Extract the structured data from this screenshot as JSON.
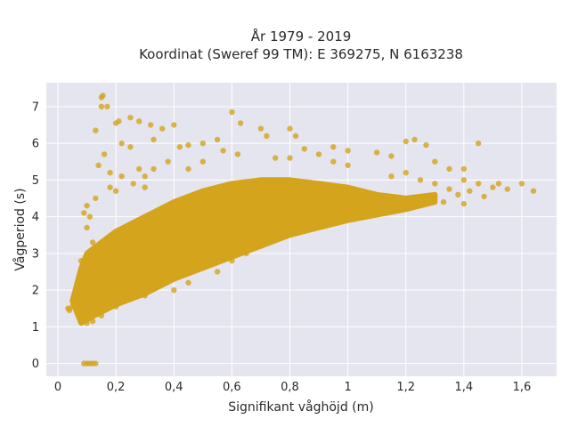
{
  "chart_data": {
    "type": "scatter",
    "title": "År 1979 - 2019",
    "subtitle": "Koordinat (Sweref 99 TM): E 369275, N 6163238",
    "xlabel": "Signifikant våghöjd (m)",
    "ylabel": "Vågperiod (s)",
    "xlim": [
      -0.04,
      1.72
    ],
    "ylim": [
      -0.35,
      7.65
    ],
    "xticks": [
      0,
      0.2,
      0.4,
      0.6,
      0.8,
      1,
      1.2,
      1.4,
      1.6
    ],
    "xtick_labels": [
      "0",
      "0,2",
      "0,4",
      "0,6",
      "0,8",
      "1",
      "1,2",
      "1,4",
      "1,6"
    ],
    "yticks": [
      0,
      1,
      2,
      3,
      4,
      5,
      6,
      7
    ],
    "ytick_labels": [
      "0",
      "1",
      "2",
      "3",
      "4",
      "5",
      "6",
      "7"
    ],
    "grid": true,
    "legend": "none",
    "colors": {
      "points": "#d4a41c",
      "plot_bg": "#e5e5ef",
      "grid": "#ffffff"
    },
    "density_band": {
      "lower_edge": [
        [
          0.08,
          1.1
        ],
        [
          0.1,
          1.2
        ],
        [
          0.2,
          1.6
        ],
        [
          0.3,
          1.9
        ],
        [
          0.4,
          2.3
        ],
        [
          0.5,
          2.6
        ],
        [
          0.6,
          2.9
        ],
        [
          0.7,
          3.2
        ],
        [
          0.8,
          3.5
        ],
        [
          0.9,
          3.7
        ],
        [
          1.0,
          3.9
        ],
        [
          1.1,
          4.05
        ],
        [
          1.2,
          4.2
        ],
        [
          1.3,
          4.4
        ]
      ],
      "upper_edge": [
        [
          0.05,
          1.7
        ],
        [
          0.08,
          2.6
        ],
        [
          0.1,
          3.0
        ],
        [
          0.2,
          3.6
        ],
        [
          0.3,
          4.0
        ],
        [
          0.4,
          4.4
        ],
        [
          0.5,
          4.7
        ],
        [
          0.6,
          4.9
        ],
        [
          0.7,
          5.0
        ],
        [
          0.8,
          5.0
        ],
        [
          0.9,
          4.9
        ],
        [
          1.0,
          4.8
        ],
        [
          1.1,
          4.6
        ],
        [
          1.2,
          4.5
        ],
        [
          1.3,
          4.6
        ]
      ]
    },
    "points": [
      {
        "x": 0.09,
        "y": 0
      },
      {
        "x": 0.1,
        "y": 0
      },
      {
        "x": 0.11,
        "y": 0
      },
      {
        "x": 0.12,
        "y": 0
      },
      {
        "x": 0.13,
        "y": 0
      },
      {
        "x": 0.035,
        "y": 1.5
      },
      {
        "x": 0.04,
        "y": 1.45
      },
      {
        "x": 0.05,
        "y": 1.55
      },
      {
        "x": 0.06,
        "y": 1.6
      },
      {
        "x": 0.065,
        "y": 1.4
      },
      {
        "x": 0.07,
        "y": 1.9
      },
      {
        "x": 0.075,
        "y": 2.3
      },
      {
        "x": 0.08,
        "y": 2.8
      },
      {
        "x": 0.085,
        "y": 1.2
      },
      {
        "x": 0.09,
        "y": 1.15
      },
      {
        "x": 0.1,
        "y": 3.7
      },
      {
        "x": 0.11,
        "y": 4.0
      },
      {
        "x": 0.12,
        "y": 3.3
      },
      {
        "x": 0.13,
        "y": 4.5
      },
      {
        "x": 0.13,
        "y": 6.35
      },
      {
        "x": 0.15,
        "y": 7.25
      },
      {
        "x": 0.155,
        "y": 7.3
      },
      {
        "x": 0.17,
        "y": 7.0
      },
      {
        "x": 0.15,
        "y": 7.0
      },
      {
        "x": 0.14,
        "y": 5.4
      },
      {
        "x": 0.16,
        "y": 5.7
      },
      {
        "x": 0.18,
        "y": 5.2
      },
      {
        "x": 0.2,
        "y": 6.55
      },
      {
        "x": 0.21,
        "y": 6.6
      },
      {
        "x": 0.22,
        "y": 6.0
      },
      {
        "x": 0.25,
        "y": 5.9
      },
      {
        "x": 0.25,
        "y": 6.7
      },
      {
        "x": 0.28,
        "y": 6.6
      },
      {
        "x": 0.3,
        "y": 5.1
      },
      {
        "x": 0.32,
        "y": 6.5
      },
      {
        "x": 0.33,
        "y": 6.1
      },
      {
        "x": 0.36,
        "y": 6.4
      },
      {
        "x": 0.4,
        "y": 6.5
      },
      {
        "x": 0.42,
        "y": 5.9
      },
      {
        "x": 0.45,
        "y": 5.95
      },
      {
        "x": 0.5,
        "y": 6.0
      },
      {
        "x": 0.55,
        "y": 6.1
      },
      {
        "x": 0.57,
        "y": 5.8
      },
      {
        "x": 0.6,
        "y": 6.85
      },
      {
        "x": 0.63,
        "y": 6.55
      },
      {
        "x": 0.7,
        "y": 6.4
      },
      {
        "x": 0.72,
        "y": 6.2
      },
      {
        "x": 0.8,
        "y": 6.4
      },
      {
        "x": 0.82,
        "y": 6.2
      },
      {
        "x": 0.85,
        "y": 5.85
      },
      {
        "x": 0.9,
        "y": 5.7
      },
      {
        "x": 0.95,
        "y": 5.9
      },
      {
        "x": 1.0,
        "y": 5.8
      },
      {
        "x": 1.1,
        "y": 5.75
      },
      {
        "x": 1.15,
        "y": 5.65
      },
      {
        "x": 1.2,
        "y": 6.05
      },
      {
        "x": 1.23,
        "y": 6.1
      },
      {
        "x": 1.27,
        "y": 5.95
      },
      {
        "x": 1.3,
        "y": 5.5
      },
      {
        "x": 1.35,
        "y": 5.3
      },
      {
        "x": 1.4,
        "y": 5.3
      },
      {
        "x": 1.45,
        "y": 6.0
      },
      {
        "x": 1.35,
        "y": 4.75
      },
      {
        "x": 1.38,
        "y": 4.6
      },
      {
        "x": 1.42,
        "y": 4.7
      },
      {
        "x": 1.45,
        "y": 4.9
      },
      {
        "x": 1.47,
        "y": 4.55
      },
      {
        "x": 1.5,
        "y": 4.8
      },
      {
        "x": 1.52,
        "y": 4.9
      },
      {
        "x": 1.55,
        "y": 4.75
      },
      {
        "x": 1.6,
        "y": 4.9
      },
      {
        "x": 1.64,
        "y": 4.7
      },
      {
        "x": 1.4,
        "y": 5.0
      },
      {
        "x": 1.3,
        "y": 4.9
      },
      {
        "x": 1.25,
        "y": 5.0
      },
      {
        "x": 1.33,
        "y": 4.4
      },
      {
        "x": 1.4,
        "y": 4.35
      },
      {
        "x": 1.2,
        "y": 5.2
      },
      {
        "x": 1.15,
        "y": 5.1
      },
      {
        "x": 1.0,
        "y": 5.4
      },
      {
        "x": 0.95,
        "y": 5.5
      },
      {
        "x": 0.8,
        "y": 5.6
      },
      {
        "x": 0.75,
        "y": 5.6
      },
      {
        "x": 0.62,
        "y": 5.7
      },
      {
        "x": 0.5,
        "y": 5.5
      },
      {
        "x": 0.45,
        "y": 5.3
      },
      {
        "x": 0.38,
        "y": 5.5
      },
      {
        "x": 0.33,
        "y": 5.3
      },
      {
        "x": 0.28,
        "y": 5.3
      },
      {
        "x": 0.22,
        "y": 5.1
      },
      {
        "x": 0.2,
        "y": 4.7
      },
      {
        "x": 0.18,
        "y": 4.8
      },
      {
        "x": 0.26,
        "y": 4.9
      },
      {
        "x": 0.3,
        "y": 4.8
      },
      {
        "x": 0.36,
        "y": 2.2
      },
      {
        "x": 0.4,
        "y": 2.0
      },
      {
        "x": 0.45,
        "y": 2.2
      },
      {
        "x": 0.5,
        "y": 2.6
      },
      {
        "x": 0.55,
        "y": 2.5
      },
      {
        "x": 0.6,
        "y": 2.8
      },
      {
        "x": 0.65,
        "y": 3.0
      },
      {
        "x": 0.7,
        "y": 3.2
      },
      {
        "x": 0.1,
        "y": 1.1
      },
      {
        "x": 0.12,
        "y": 1.15
      },
      {
        "x": 0.15,
        "y": 1.3
      },
      {
        "x": 0.2,
        "y": 1.55
      },
      {
        "x": 0.25,
        "y": 1.75
      },
      {
        "x": 0.3,
        "y": 1.85
      },
      {
        "x": 0.1,
        "y": 4.3
      },
      {
        "x": 0.09,
        "y": 4.1
      }
    ]
  }
}
